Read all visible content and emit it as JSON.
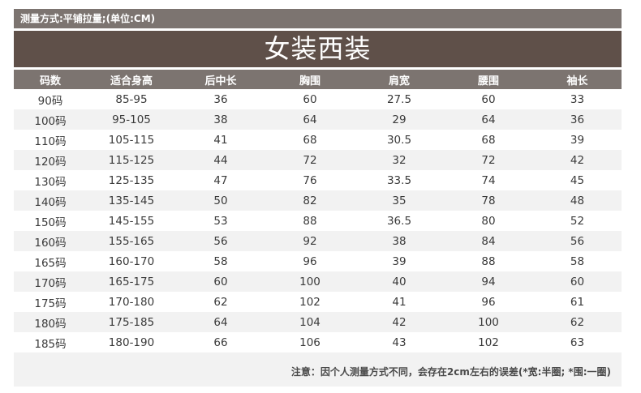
{
  "measure_method": "测量方式:平铺拉量;(单位:CM)",
  "title": "女装西装",
  "headers": [
    "码数",
    "适合身高",
    "后中长",
    "胸围",
    "肩宽",
    "腰围",
    "袖长"
  ],
  "rows": [
    [
      "90码",
      "85-95",
      "36",
      "60",
      "27.5",
      "60",
      "33"
    ],
    [
      "100码",
      "95-105",
      "38",
      "64",
      "29",
      "64",
      "36"
    ],
    [
      "110码",
      "105-115",
      "41",
      "68",
      "30.5",
      "68",
      "39"
    ],
    [
      "120码",
      "115-125",
      "44",
      "72",
      "32",
      "72",
      "42"
    ],
    [
      "130码",
      "125-135",
      "47",
      "76",
      "33.5",
      "74",
      "45"
    ],
    [
      "140码",
      "135-145",
      "50",
      "82",
      "35",
      "78",
      "48"
    ],
    [
      "150码",
      "145-155",
      "53",
      "88",
      "36.5",
      "80",
      "52"
    ],
    [
      "160码",
      "155-165",
      "56",
      "92",
      "38",
      "84",
      "56"
    ],
    [
      "165码",
      "160-170",
      "58",
      "96",
      "39",
      "88",
      "58"
    ],
    [
      "170码",
      "165-175",
      "60",
      "100",
      "40",
      "94",
      "60"
    ],
    [
      "175码",
      "170-180",
      "62",
      "102",
      "41",
      "96",
      "61"
    ],
    [
      "180码",
      "175-185",
      "64",
      "104",
      "42",
      "100",
      "62"
    ],
    [
      "185码",
      "180-190",
      "66",
      "106",
      "43",
      "102",
      "63"
    ]
  ],
  "note": "注意：因个人测量方式不同，会存在2cm左右的误差(*宽:半圈; *围:一圈)",
  "colors": {
    "bar": "#7c7470",
    "title_bar": "#5f5049",
    "row_alt": "#f2f2f2"
  }
}
